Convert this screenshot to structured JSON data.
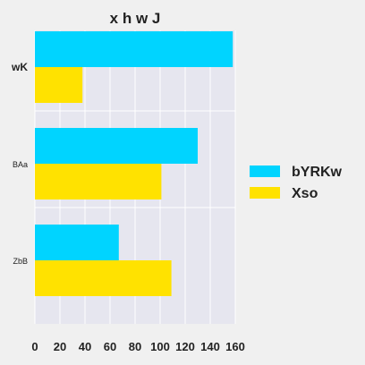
{
  "chart_data": {
    "type": "bar",
    "orientation": "horizontal",
    "title": "x h w J",
    "xlabel": "",
    "ylabel": "",
    "categories": [
      "wK",
      "BAa",
      "ZbB"
    ],
    "series": [
      {
        "name": "bYRKw",
        "color": "#00d4ff",
        "values": [
          158,
          130,
          67
        ]
      },
      {
        "name": "Xso",
        "color": "#ffe200",
        "values": [
          38,
          101,
          109
        ]
      }
    ],
    "xlim": [
      0,
      160
    ],
    "xticks": [
      0,
      20,
      40,
      60,
      80,
      100,
      120,
      140,
      160
    ],
    "grid": true,
    "legend_position": "right",
    "plot_background": "#e6e6ef",
    "page_background": "#f0f0f0"
  }
}
